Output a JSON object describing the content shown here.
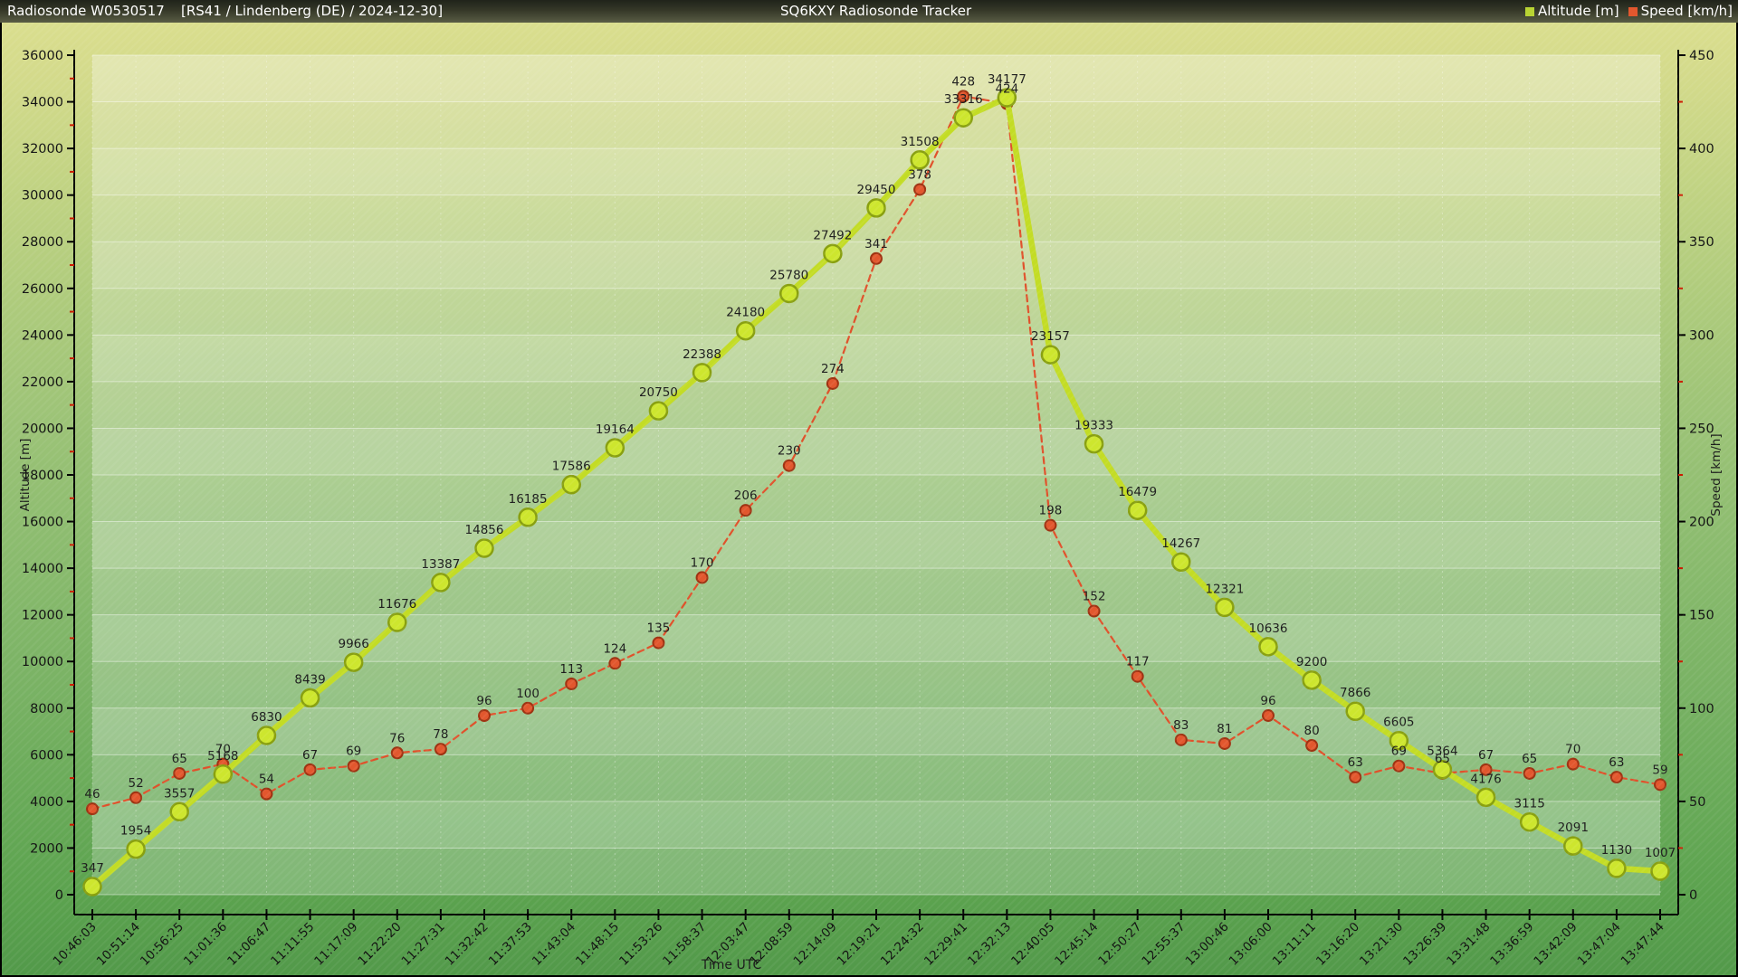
{
  "header": {
    "station_title": "Radiosonde W0530517",
    "details_title": "[RS41 / Lindenberg (DE) / 2024-12-30]",
    "app_title": "SQ6KXY Radiosonde Tracker",
    "legend": [
      {
        "label": "Altitude [m]",
        "color": "#b8d333"
      },
      {
        "label": "Speed [km/h]",
        "color": "#e2572e"
      }
    ]
  },
  "chart_data": {
    "type": "line",
    "x_label": "Time UTC",
    "x": [
      "10:46:03",
      "10:51:14",
      "10:56:25",
      "11:01:36",
      "11:06:47",
      "11:11:55",
      "11:17:09",
      "11:22:20",
      "11:27:31",
      "11:32:42",
      "11:37:53",
      "11:43:04",
      "11:48:15",
      "11:53:26",
      "11:58:37",
      "12:03:47",
      "12:08:59",
      "12:14:09",
      "12:19:21",
      "12:24:32",
      "12:29:41",
      "12:32:13",
      "12:40:05",
      "12:45:14",
      "12:50:27",
      "12:55:37",
      "13:00:46",
      "13:06:00",
      "13:11:11",
      "13:16:20",
      "13:21:30",
      "13:26:39",
      "13:31:48",
      "13:36:59",
      "13:42:09",
      "13:47:04",
      "13:47:44"
    ],
    "series": [
      {
        "name": "Altitude [m]",
        "axis": "left",
        "style": "solid",
        "line_color": "#c3dc25",
        "marker_fill": "#cde62e",
        "marker_stroke": "#89a010",
        "values": [
          347,
          1954,
          3557,
          5168,
          6830,
          8439,
          9966,
          11676,
          13387,
          14856,
          16185,
          17586,
          19164,
          20750,
          22388,
          24180,
          25780,
          27492,
          29450,
          31508,
          33316,
          34177,
          23157,
          19333,
          16479,
          14267,
          12321,
          10636,
          9200,
          7866,
          6605,
          5364,
          4176,
          3115,
          2091,
          1130,
          1007
        ]
      },
      {
        "name": "Speed [km/h]",
        "axis": "right",
        "style": "dashed",
        "line_color": "#e0512b",
        "marker_fill": "#e2572e",
        "marker_stroke": "#9e3312",
        "values": [
          46,
          52,
          65,
          70,
          54,
          67,
          69,
          76,
          78,
          96,
          100,
          113,
          124,
          135,
          170,
          206,
          230,
          274,
          341,
          378,
          428,
          424,
          198,
          152,
          117,
          83,
          81,
          96,
          80,
          63,
          69,
          65,
          67,
          65,
          70,
          63,
          59
        ]
      }
    ],
    "left_axis": {
      "label": "Altitude [m]",
      "min": 0,
      "max": 36000,
      "major_step": 2000,
      "minor_step": 1000
    },
    "right_axis": {
      "label": "Speed [km/h]",
      "min": 0,
      "max": 450,
      "major_step": 50,
      "minor_step": 25
    },
    "grid": true,
    "legend_position": "top-right"
  }
}
